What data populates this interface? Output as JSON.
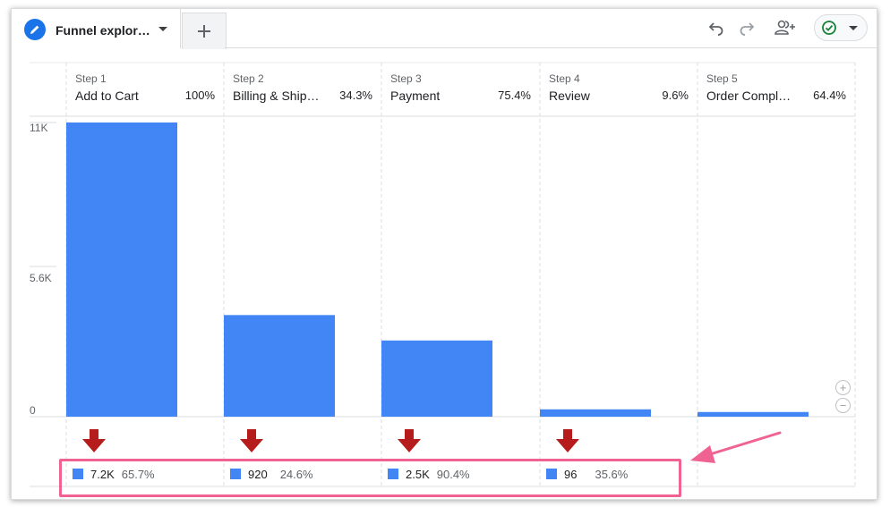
{
  "tab": {
    "title": "Funnel explor…",
    "edit_icon": "pencil-icon",
    "caret_icon": "caret-down-icon",
    "add_icon": "plus-icon"
  },
  "toolbar": {
    "undo_icon": "undo-icon",
    "redo_icon": "redo-icon",
    "share_icon": "share-person-icon",
    "status_icon": "check-circle-icon",
    "status_color": "#188038"
  },
  "y_axis": [
    "11K",
    "5.6K",
    "0"
  ],
  "steps": [
    {
      "step": "Step 1",
      "name": "Add to Cart",
      "pct": "100%"
    },
    {
      "step": "Step 2",
      "name": "Billing & Ship…",
      "pct": "34.3%"
    },
    {
      "step": "Step 3",
      "name": "Payment",
      "pct": "75.4%"
    },
    {
      "step": "Step 4",
      "name": "Review",
      "pct": "9.6%"
    },
    {
      "step": "Step 5",
      "name": "Order Comple…",
      "pct": "64.4%"
    }
  ],
  "abandonments": [
    {
      "value": "7.2K",
      "pct": "65.7%"
    },
    {
      "value": "920",
      "pct": "24.6%"
    },
    {
      "value": "2.5K",
      "pct": "90.4%"
    },
    {
      "value": "96",
      "pct": "35.6%"
    }
  ],
  "colors": {
    "bar": "#4285f4",
    "drop_arrow": "#b71c1c",
    "highlight": "#f06292"
  },
  "chart_data": {
    "type": "bar",
    "categories": [
      "Add to Cart",
      "Billing & Ship…",
      "Payment",
      "Review",
      "Order Comple…"
    ],
    "values": [
      11000,
      3800,
      2850,
      275,
      175
    ],
    "ylim": [
      0,
      11000
    ],
    "yticks": [
      "11K",
      "5.6K",
      "0"
    ],
    "grid": true
  },
  "zoom": {
    "in_icon": "zoom-in-icon",
    "out_icon": "zoom-out-icon"
  }
}
